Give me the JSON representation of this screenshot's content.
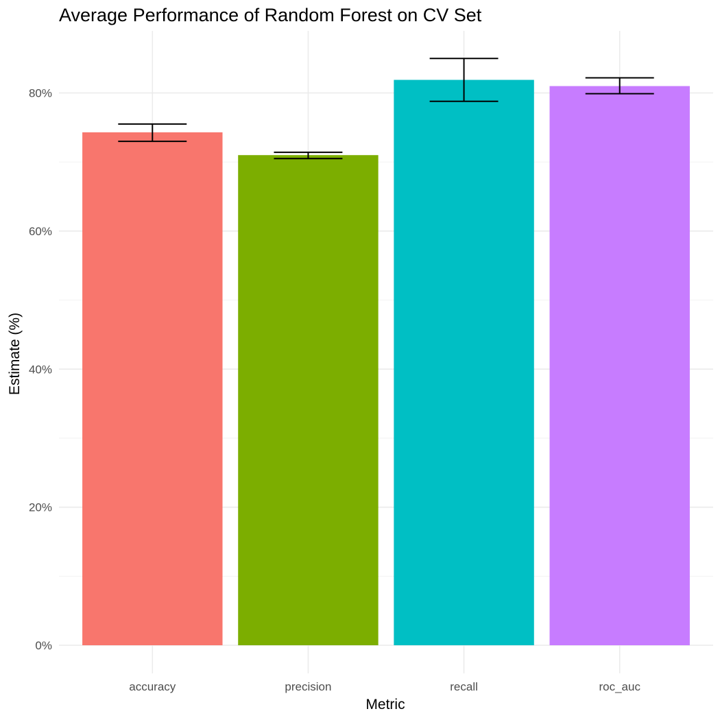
{
  "chart_data": {
    "type": "bar",
    "title": "Average Performance of Random Forest on CV Set",
    "xlabel": "Metric",
    "ylabel": "Estimate (%)",
    "categories": [
      "accuracy",
      "precision",
      "recall",
      "roc_auc"
    ],
    "values": [
      74.3,
      71.0,
      81.9,
      81.0
    ],
    "error_low": [
      73.0,
      70.5,
      78.8,
      79.9
    ],
    "error_high": [
      75.5,
      71.4,
      85.0,
      82.2
    ],
    "colors": [
      "#F8766D",
      "#7CAE00",
      "#00BFC4",
      "#C77CFF"
    ],
    "ylim": [
      0,
      89
    ],
    "yticks": [
      0,
      20,
      40,
      60,
      80
    ],
    "ytick_labels": [
      "0%",
      "20%",
      "40%",
      "60%",
      "80%"
    ],
    "grid": true,
    "legend": "none"
  }
}
